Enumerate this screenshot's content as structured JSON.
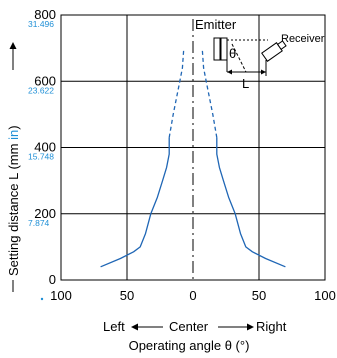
{
  "chart_data": {
    "type": "line",
    "title": "",
    "x_domain": [
      -100,
      100
    ],
    "ylim": [
      0,
      800
    ],
    "grid": true,
    "x_ticks": [
      {
        "value": -100,
        "label": "100"
      },
      {
        "value": -50,
        "label": "50"
      },
      {
        "value": 0,
        "label": "0"
      },
      {
        "value": 50,
        "label": "50"
      },
      {
        "value": 100,
        "label": "100"
      }
    ],
    "y_ticks": [
      {
        "value": 0,
        "label": "0",
        "sub": ""
      },
      {
        "value": 200,
        "label": "200",
        "sub": "7.874"
      },
      {
        "value": 400,
        "label": "400",
        "sub": "15.748"
      },
      {
        "value": 600,
        "label": "600",
        "sub": "23.622"
      },
      {
        "value": 800,
        "label": "800",
        "sub": "31.496"
      }
    ],
    "ylabel_main": "Setting distance L (mm ",
    "ylabel_in": "in",
    "ylabel_close": ")",
    "xlabel_direction": {
      "left": "Left",
      "center": "Center",
      "right": "Right"
    },
    "xlabel": "Operating angle θ (°)",
    "series": [
      {
        "solid": [
          [
            -70,
            40
          ],
          [
            -55,
            65
          ],
          [
            -45,
            85
          ],
          [
            -40,
            100
          ],
          [
            -36,
            140
          ],
          [
            -32,
            200
          ],
          [
            -27,
            250
          ],
          [
            -23,
            300
          ],
          [
            -20,
            340
          ],
          [
            -18,
            380
          ],
          [
            -18,
            430
          ]
        ],
        "dashed": [
          [
            -18,
            430
          ],
          [
            -15,
            500
          ],
          [
            -11,
            580
          ],
          [
            -8,
            640
          ],
          [
            -7,
            700
          ]
        ]
      },
      {
        "solid": [
          [
            70,
            40
          ],
          [
            55,
            65
          ],
          [
            45,
            85
          ],
          [
            40,
            100
          ],
          [
            36,
            140
          ],
          [
            32,
            200
          ],
          [
            27,
            250
          ],
          [
            23,
            300
          ],
          [
            20,
            340
          ],
          [
            18,
            380
          ],
          [
            18,
            430
          ]
        ],
        "dashed": [
          [
            18,
            430
          ],
          [
            15,
            500
          ],
          [
            11,
            580
          ],
          [
            8,
            640
          ],
          [
            7,
            700
          ]
        ]
      }
    ],
    "center_line_x": 0,
    "inset": {
      "emitter_label": "Emitter",
      "receiver_label": "Receiver",
      "theta_label": "θ",
      "distance_label": "L"
    },
    "colors": {
      "line": "#1f66b5",
      "grid": "#000000",
      "accent": "#1f8fd6"
    }
  }
}
